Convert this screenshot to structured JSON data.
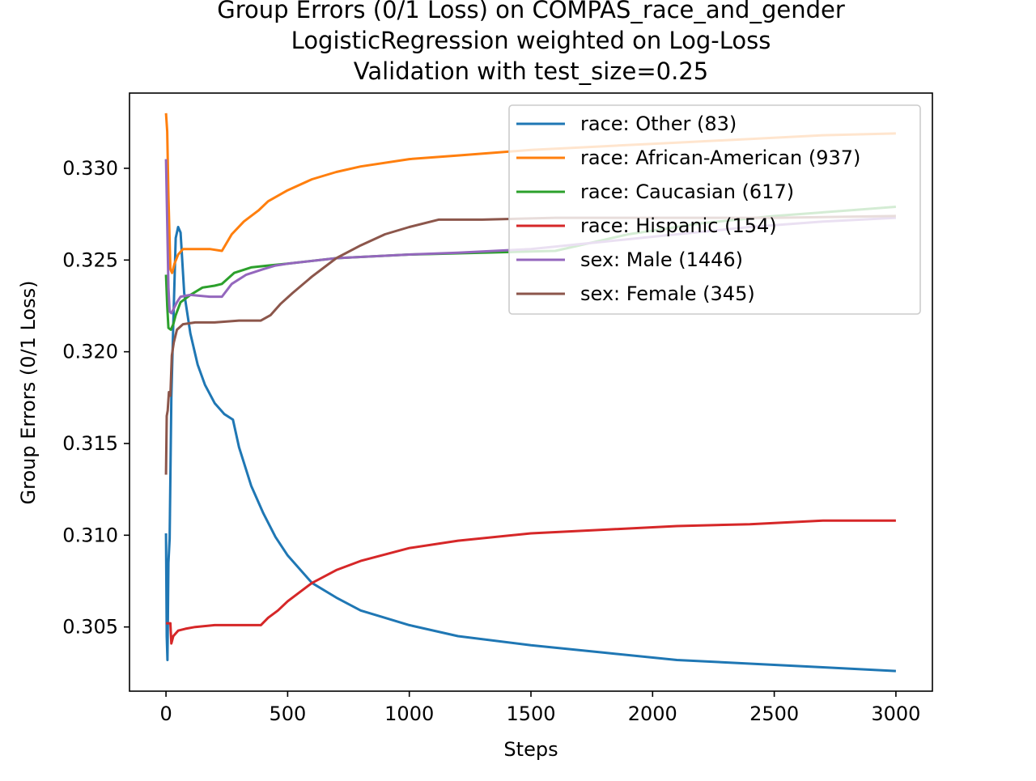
{
  "chart_data": {
    "type": "line",
    "title_lines": [
      "Group Errors (0/1 Loss) on COMPAS_race_and_gender",
      "LogisticRegression weighted on Log-Loss",
      "Validation with test_size=0.25"
    ],
    "xlabel": "Steps",
    "ylabel": "Group Errors (0/1 Loss)",
    "xlim": [
      -150,
      3150
    ],
    "ylim": [
      0.3015,
      0.3341
    ],
    "x_ticks": [
      0,
      500,
      1000,
      1500,
      2000,
      2500,
      3000
    ],
    "x_tick_labels": [
      "0",
      "500",
      "1000",
      "1500",
      "2000",
      "2500",
      "3000"
    ],
    "y_ticks": [
      0.305,
      0.31,
      0.315,
      0.32,
      0.325,
      0.33
    ],
    "y_tick_labels": [
      "0.305",
      "0.310",
      "0.315",
      "0.320",
      "0.325",
      "0.330"
    ],
    "grid": false,
    "legend_position": "upper right",
    "series": [
      {
        "name": "race: Other  (83)",
        "color": "#1f77b4",
        "points": [
          [
            0,
            0.3101
          ],
          [
            3,
            0.3045
          ],
          [
            6,
            0.3032
          ],
          [
            10,
            0.3085
          ],
          [
            15,
            0.3098
          ],
          [
            22,
            0.3175
          ],
          [
            30,
            0.3215
          ],
          [
            40,
            0.3262
          ],
          [
            50,
            0.3268
          ],
          [
            60,
            0.3265
          ],
          [
            75,
            0.3232
          ],
          [
            100,
            0.321
          ],
          [
            130,
            0.3193
          ],
          [
            160,
            0.3182
          ],
          [
            200,
            0.3172
          ],
          [
            240,
            0.3166
          ],
          [
            275,
            0.3163
          ],
          [
            300,
            0.3148
          ],
          [
            350,
            0.3127
          ],
          [
            400,
            0.3112
          ],
          [
            450,
            0.3099
          ],
          [
            500,
            0.3089
          ],
          [
            600,
            0.3074
          ],
          [
            700,
            0.3066
          ],
          [
            800,
            0.3059
          ],
          [
            1000,
            0.3051
          ],
          [
            1200,
            0.3045
          ],
          [
            1500,
            0.304
          ],
          [
            1800,
            0.3036
          ],
          [
            2100,
            0.3032
          ],
          [
            2400,
            0.303
          ],
          [
            2700,
            0.3028
          ],
          [
            3000,
            0.3026
          ]
        ]
      },
      {
        "name": "race: African-American  (937)",
        "color": "#ff7f0e",
        "points": [
          [
            0,
            0.333
          ],
          [
            5,
            0.332
          ],
          [
            10,
            0.3285
          ],
          [
            18,
            0.3245
          ],
          [
            25,
            0.3243
          ],
          [
            35,
            0.3248
          ],
          [
            50,
            0.3253
          ],
          [
            70,
            0.3256
          ],
          [
            120,
            0.3256
          ],
          [
            180,
            0.3256
          ],
          [
            230,
            0.3255
          ],
          [
            270,
            0.3264
          ],
          [
            320,
            0.3271
          ],
          [
            380,
            0.3277
          ],
          [
            420,
            0.3282
          ],
          [
            500,
            0.3288
          ],
          [
            600,
            0.3294
          ],
          [
            700,
            0.3298
          ],
          [
            800,
            0.3301
          ],
          [
            1000,
            0.3305
          ],
          [
            1200,
            0.3307
          ],
          [
            1500,
            0.331
          ],
          [
            1800,
            0.3312
          ],
          [
            2100,
            0.3314
          ],
          [
            2400,
            0.3316
          ],
          [
            2700,
            0.3318
          ],
          [
            3000,
            0.3319
          ]
        ]
      },
      {
        "name": "race: Caucasian  (617)",
        "color": "#2ca02c",
        "points": [
          [
            0,
            0.3242
          ],
          [
            5,
            0.3225
          ],
          [
            10,
            0.3213
          ],
          [
            20,
            0.3212
          ],
          [
            30,
            0.3215
          ],
          [
            40,
            0.322
          ],
          [
            60,
            0.3227
          ],
          [
            100,
            0.3231
          ],
          [
            150,
            0.3235
          ],
          [
            200,
            0.3236
          ],
          [
            230,
            0.3237
          ],
          [
            280,
            0.3243
          ],
          [
            350,
            0.3246
          ],
          [
            420,
            0.3247
          ],
          [
            500,
            0.3248
          ],
          [
            700,
            0.3251
          ],
          [
            1000,
            0.3253
          ],
          [
            1300,
            0.3254
          ],
          [
            1600,
            0.3255
          ],
          [
            1900,
            0.3264
          ],
          [
            2200,
            0.327
          ],
          [
            2500,
            0.3274
          ],
          [
            2800,
            0.3277
          ],
          [
            3000,
            0.3279
          ]
        ]
      },
      {
        "name": "race: Hispanic  (154)",
        "color": "#d62728",
        "points": [
          [
            0,
            0.3052
          ],
          [
            10,
            0.3052
          ],
          [
            18,
            0.3052
          ],
          [
            22,
            0.3041
          ],
          [
            30,
            0.3045
          ],
          [
            50,
            0.3048
          ],
          [
            80,
            0.3049
          ],
          [
            120,
            0.305
          ],
          [
            200,
            0.3051
          ],
          [
            300,
            0.3051
          ],
          [
            390,
            0.3051
          ],
          [
            420,
            0.3055
          ],
          [
            460,
            0.3059
          ],
          [
            500,
            0.3064
          ],
          [
            600,
            0.3074
          ],
          [
            700,
            0.3081
          ],
          [
            800,
            0.3086
          ],
          [
            1000,
            0.3093
          ],
          [
            1200,
            0.3097
          ],
          [
            1500,
            0.3101
          ],
          [
            1800,
            0.3103
          ],
          [
            2100,
            0.3105
          ],
          [
            2400,
            0.3106
          ],
          [
            2700,
            0.3108
          ],
          [
            3000,
            0.3108
          ]
        ]
      },
      {
        "name": "sex: Male  (1446)",
        "color": "#9467bd",
        "points": [
          [
            0,
            0.3305
          ],
          [
            5,
            0.327
          ],
          [
            10,
            0.3235
          ],
          [
            15,
            0.3222
          ],
          [
            22,
            0.3221
          ],
          [
            30,
            0.3223
          ],
          [
            45,
            0.3227
          ],
          [
            60,
            0.323
          ],
          [
            100,
            0.3231
          ],
          [
            180,
            0.323
          ],
          [
            230,
            0.323
          ],
          [
            270,
            0.3237
          ],
          [
            330,
            0.3242
          ],
          [
            400,
            0.3245
          ],
          [
            450,
            0.3247
          ],
          [
            500,
            0.3248
          ],
          [
            700,
            0.3251
          ],
          [
            1000,
            0.3253
          ],
          [
            1200,
            0.3254
          ],
          [
            1500,
            0.3256
          ],
          [
            1800,
            0.326
          ],
          [
            2100,
            0.3264
          ],
          [
            2400,
            0.3268
          ],
          [
            2700,
            0.3271
          ],
          [
            3000,
            0.3273
          ]
        ]
      },
      {
        "name": "sex: Female  (345)",
        "color": "#8c564b",
        "points": [
          [
            0,
            0.3133
          ],
          [
            3,
            0.3165
          ],
          [
            7,
            0.3168
          ],
          [
            12,
            0.3178
          ],
          [
            18,
            0.3176
          ],
          [
            24,
            0.3198
          ],
          [
            32,
            0.3205
          ],
          [
            45,
            0.3212
          ],
          [
            70,
            0.3215
          ],
          [
            120,
            0.3216
          ],
          [
            200,
            0.3216
          ],
          [
            300,
            0.3217
          ],
          [
            390,
            0.3217
          ],
          [
            430,
            0.322
          ],
          [
            470,
            0.3226
          ],
          [
            520,
            0.3232
          ],
          [
            600,
            0.3241
          ],
          [
            700,
            0.3251
          ],
          [
            800,
            0.3258
          ],
          [
            900,
            0.3264
          ],
          [
            1000,
            0.3268
          ],
          [
            1120,
            0.3272
          ],
          [
            1300,
            0.3272
          ],
          [
            1600,
            0.3273
          ],
          [
            2000,
            0.3273
          ],
          [
            2500,
            0.3273
          ],
          [
            3000,
            0.3274
          ]
        ]
      }
    ]
  }
}
